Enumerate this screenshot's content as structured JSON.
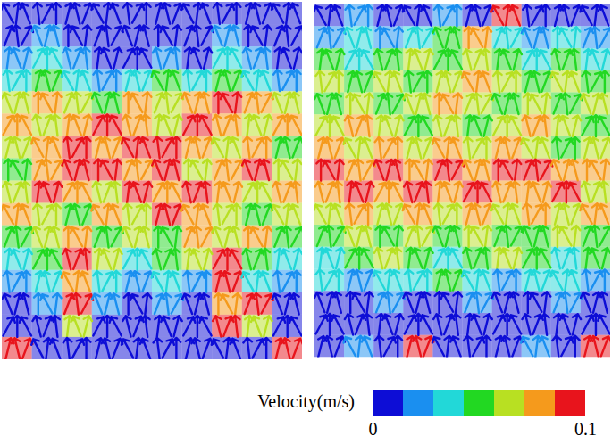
{
  "chart_data": {
    "type": "vector_field",
    "tick_labels": false,
    "panels": [
      {
        "velocity": [
          [
            0.005,
            0.005,
            0.005,
            0.005,
            0.005,
            0.005,
            0.005,
            0.005,
            0.005,
            0.005
          ],
          [
            0.005,
            0.02,
            0.005,
            0.005,
            0.005,
            0.005,
            0.005,
            0.02,
            0.005,
            0.005
          ],
          [
            0.02,
            0.035,
            0.02,
            0.005,
            0.005,
            0.02,
            0.005,
            0.035,
            0.02,
            0.005
          ],
          [
            0.035,
            0.05,
            0.035,
            0.02,
            0.035,
            0.05,
            0.035,
            0.05,
            0.035,
            0.02
          ],
          [
            0.065,
            0.08,
            0.065,
            0.05,
            0.08,
            0.065,
            0.08,
            0.095,
            0.08,
            0.065
          ],
          [
            0.08,
            0.065,
            0.08,
            0.095,
            0.08,
            0.065,
            0.095,
            0.08,
            0.065,
            0.08
          ],
          [
            0.065,
            0.08,
            0.095,
            0.08,
            0.095,
            0.095,
            0.08,
            0.065,
            0.08,
            0.05
          ],
          [
            0.05,
            0.08,
            0.095,
            0.095,
            0.08,
            0.095,
            0.065,
            0.08,
            0.095,
            0.065
          ],
          [
            0.065,
            0.095,
            0.08,
            0.065,
            0.095,
            0.08,
            0.095,
            0.08,
            0.065,
            0.08
          ],
          [
            0.08,
            0.065,
            0.05,
            0.08,
            0.065,
            0.095,
            0.08,
            0.065,
            0.05,
            0.065
          ],
          [
            0.05,
            0.065,
            0.08,
            0.05,
            0.065,
            0.05,
            0.08,
            0.065,
            0.08,
            0.05
          ],
          [
            0.035,
            0.05,
            0.095,
            0.065,
            0.035,
            0.05,
            0.065,
            0.095,
            0.05,
            0.035
          ],
          [
            0.02,
            0.035,
            0.08,
            0.035,
            0.02,
            0.035,
            0.02,
            0.095,
            0.035,
            0.02
          ],
          [
            0.005,
            0.02,
            0.095,
            0.02,
            0.005,
            0.02,
            0.005,
            0.08,
            0.095,
            0.005
          ],
          [
            0.005,
            0.005,
            0.065,
            0.005,
            0.005,
            0.005,
            0.005,
            0.095,
            0.065,
            0.005
          ],
          [
            0.095,
            0.005,
            0.005,
            0.005,
            0.005,
            0.005,
            0.005,
            0.005,
            0.005,
            0.095
          ]
        ]
      },
      {
        "velocity": [
          [
            0.005,
            0.02,
            0.005,
            0.005,
            0.02,
            0.005,
            0.095,
            0.005,
            0.005,
            0.005
          ],
          [
            0.02,
            0.035,
            0.02,
            0.035,
            0.05,
            0.08,
            0.035,
            0.02,
            0.035,
            0.02
          ],
          [
            0.05,
            0.035,
            0.05,
            0.065,
            0.05,
            0.065,
            0.05,
            0.035,
            0.05,
            0.035
          ],
          [
            0.065,
            0.05,
            0.065,
            0.05,
            0.065,
            0.08,
            0.065,
            0.05,
            0.065,
            0.05
          ],
          [
            0.05,
            0.065,
            0.05,
            0.065,
            0.08,
            0.065,
            0.05,
            0.065,
            0.05,
            0.065
          ],
          [
            0.065,
            0.08,
            0.065,
            0.05,
            0.065,
            0.05,
            0.065,
            0.08,
            0.065,
            0.05
          ],
          [
            0.08,
            0.065,
            0.08,
            0.065,
            0.08,
            0.065,
            0.08,
            0.065,
            0.05,
            0.065
          ],
          [
            0.095,
            0.08,
            0.095,
            0.08,
            0.095,
            0.08,
            0.095,
            0.095,
            0.08,
            0.08
          ],
          [
            0.08,
            0.095,
            0.08,
            0.095,
            0.08,
            0.095,
            0.08,
            0.08,
            0.095,
            0.065
          ],
          [
            0.065,
            0.08,
            0.065,
            0.08,
            0.065,
            0.08,
            0.065,
            0.08,
            0.065,
            0.08
          ],
          [
            0.05,
            0.065,
            0.05,
            0.065,
            0.05,
            0.065,
            0.05,
            0.05,
            0.065,
            0.05
          ],
          [
            0.035,
            0.05,
            0.065,
            0.05,
            0.035,
            0.05,
            0.065,
            0.05,
            0.035,
            0.05
          ],
          [
            0.035,
            0.02,
            0.035,
            0.035,
            0.05,
            0.035,
            0.02,
            0.035,
            0.035,
            0.02
          ],
          [
            0.005,
            0.005,
            0.02,
            0.005,
            0.005,
            0.02,
            0.005,
            0.005,
            0.02,
            0.005
          ],
          [
            0.005,
            0.005,
            0.005,
            0.005,
            0.005,
            0.005,
            0.005,
            0.005,
            0.005,
            0.005
          ],
          [
            0.005,
            0.02,
            0.005,
            0.095,
            0.005,
            0.005,
            0.005,
            0.02,
            0.005,
            0.095
          ]
        ]
      }
    ],
    "colorbar": {
      "label": "Velocity(m/s)",
      "range": [
        0,
        0.1
      ],
      "ticks": [
        0,
        0.1
      ],
      "colors": [
        "#0d0dd6",
        "#1a8ff0",
        "#22d8d8",
        "#22d822",
        "#b8e022",
        "#f59a1c",
        "#e8141c"
      ]
    }
  }
}
